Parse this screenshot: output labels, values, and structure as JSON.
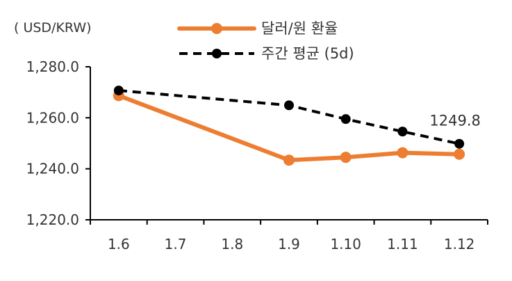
{
  "chart_data": {
    "type": "line",
    "categories": [
      "1.6",
      "1.7",
      "1.8",
      "1.9",
      "1.10",
      "1.11",
      "1.12"
    ],
    "unit_label": "( USD/KRW)",
    "ylim": [
      1220,
      1280
    ],
    "yticks": [
      1220,
      1240,
      1260,
      1280
    ],
    "ytick_labels": [
      "1,220.0",
      "1,240.0",
      "1,260.0",
      "1,280.0"
    ],
    "grid": false,
    "legend_position": "top",
    "series": [
      {
        "name": "달러/원 환율",
        "style": "solid",
        "color": "#ED7D31",
        "marker_color": "#ED7D31",
        "points": [
          [
            0,
            1268.7
          ],
          [
            3,
            1243.4
          ],
          [
            4,
            1244.5
          ],
          [
            5,
            1246.3
          ],
          [
            6,
            1245.7
          ]
        ]
      },
      {
        "name": "주간 평균 (5d)",
        "style": "dashed",
        "color": "#000000",
        "marker_color": "#000000",
        "points": [
          [
            0,
            1270.7
          ],
          [
            3,
            1264.9
          ],
          [
            4,
            1259.5
          ],
          [
            5,
            1254.6
          ],
          [
            6,
            1249.8
          ]
        ]
      }
    ],
    "annotations": [
      {
        "text": "1249.8",
        "series": 1,
        "point": 4
      }
    ]
  }
}
